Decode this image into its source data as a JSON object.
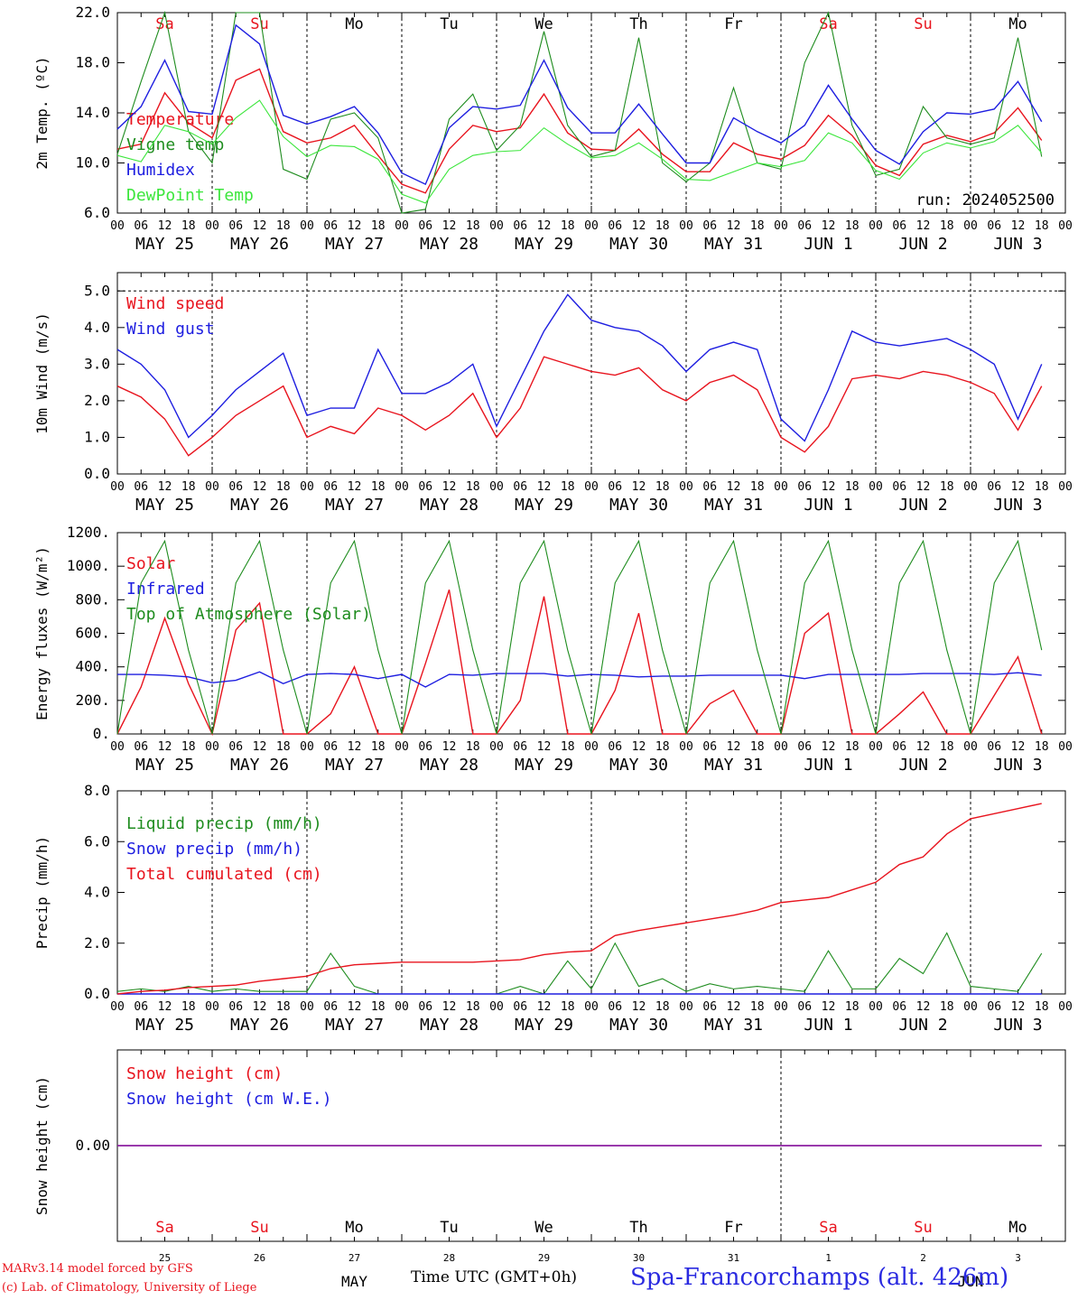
{
  "footer": {
    "credit_line_1": "MARv3.14 model forced by GFS",
    "credit_line_2": "(c) Lab. of Climatology, University of Liege",
    "time_axis_label": "Time UTC (GMT+0h)",
    "station": "Spa-Francorchamps (alt. 426m)"
  },
  "time_axis": {
    "hour_ticks": [
      "00",
      "06",
      "12",
      "18"
    ],
    "date_labels": [
      "MAY 25",
      "MAY 26",
      "MAY 27",
      "MAY 28",
      "MAY 29",
      "MAY 30",
      "MAY 31",
      "JUN  1",
      "JUN  2",
      "JUN  3"
    ],
    "weekday_labels": [
      "Sa",
      "Su",
      "Mo",
      "Tu",
      "We",
      "Th",
      "Fr",
      "Sa",
      "Su",
      "Mo"
    ],
    "weekend_flags": [
      true,
      true,
      false,
      false,
      false,
      false,
      false,
      true,
      true,
      false
    ],
    "day_numbers": [
      "25",
      "26",
      "27",
      "28",
      "29",
      "30",
      "31",
      "1",
      "2",
      "3"
    ],
    "month_labels": [
      "MAY",
      "JUN"
    ]
  },
  "colors": {
    "red": "#e8141e",
    "green": "#1e8c1e",
    "blue": "#1e1ee0",
    "lightgreen": "#3ce63c",
    "purple": "#8c1ea0"
  },
  "chart_data": [
    {
      "type": "line",
      "ylabel": "2m Temp. (ºC)",
      "ylim": [
        6.0,
        22.0
      ],
      "ytick_labels": [
        "6.0",
        "10.0",
        "14.0",
        "18.0",
        "22.0"
      ],
      "run_label": "run: 2024052500",
      "x_hours": [
        0,
        6,
        12,
        18,
        24,
        30,
        36,
        42,
        48,
        54,
        60,
        66,
        72,
        78,
        84,
        90,
        96,
        102,
        108,
        114,
        120,
        126,
        132,
        138,
        144,
        150,
        156,
        162,
        168,
        174,
        180,
        186,
        192,
        198,
        204,
        210,
        216,
        222,
        228,
        234
      ],
      "series": [
        {
          "name": "Temperature",
          "color": "red",
          "values": [
            11.1,
            11.5,
            15.6,
            13.2,
            12.0,
            16.6,
            17.5,
            12.5,
            11.6,
            12.0,
            13.0,
            10.6,
            8.3,
            7.6,
            11.1,
            13.0,
            12.5,
            12.8,
            15.5,
            12.4,
            11.1,
            11.0,
            12.7,
            10.7,
            9.3,
            9.3,
            11.6,
            10.7,
            10.3,
            11.4,
            13.8,
            12.2,
            9.8,
            9.0,
            11.5,
            12.2,
            11.7,
            12.4,
            14.4,
            11.8
          ]
        },
        {
          "name": "Vigne temp",
          "color": "green",
          "values": [
            10.7,
            16.5,
            22.0,
            12.5,
            10.0,
            22.0,
            22.0,
            9.5,
            8.7,
            13.5,
            14.0,
            12.0,
            6.0,
            6.3,
            13.5,
            15.5,
            11.0,
            13.0,
            20.5,
            13.0,
            10.5,
            11.0,
            20.0,
            10.0,
            8.5,
            10.0,
            16.0,
            10.0,
            9.5,
            18.0,
            22.0,
            13.0,
            9.0,
            9.5,
            14.5,
            12.0,
            11.5,
            12.0,
            20.0,
            10.5
          ]
        },
        {
          "name": "Humidex",
          "color": "blue",
          "values": [
            12.7,
            14.5,
            18.2,
            14.1,
            13.9,
            21.0,
            19.5,
            13.8,
            13.1,
            13.7,
            14.5,
            12.4,
            9.2,
            8.3,
            12.8,
            14.5,
            14.3,
            14.6,
            18.2,
            14.4,
            12.4,
            12.4,
            14.7,
            12.3,
            10.0,
            10.0,
            13.6,
            12.5,
            11.6,
            13.0,
            16.2,
            13.5,
            11.0,
            9.9,
            12.5,
            14.0,
            13.9,
            14.3,
            16.5,
            13.3
          ]
        },
        {
          "name": "DewPoint Temp",
          "color": "lightgreen",
          "values": [
            10.6,
            10.1,
            13.0,
            12.5,
            11.5,
            13.6,
            15.0,
            12.1,
            10.5,
            11.4,
            11.3,
            10.3,
            7.5,
            6.8,
            9.5,
            10.6,
            10.9,
            11.0,
            12.8,
            11.5,
            10.4,
            10.6,
            11.6,
            10.3,
            8.7,
            8.6,
            9.3,
            10.0,
            9.7,
            10.2,
            12.4,
            11.6,
            9.4,
            8.7,
            10.8,
            11.6,
            11.2,
            11.7,
            13.0,
            10.8
          ]
        }
      ]
    },
    {
      "type": "line",
      "ylabel": "10m Wind (m/s)",
      "ylim": [
        0.0,
        5.5
      ],
      "ytick_labels": [
        "0.0",
        "1.0",
        "2.0",
        "3.0",
        "4.0",
        "5.0"
      ],
      "x_hours": [
        0,
        6,
        12,
        18,
        24,
        30,
        36,
        42,
        48,
        54,
        60,
        66,
        72,
        78,
        84,
        90,
        96,
        102,
        108,
        114,
        120,
        126,
        132,
        138,
        144,
        150,
        156,
        162,
        168,
        174,
        180,
        186,
        192,
        198,
        204,
        210,
        216,
        222,
        228,
        234
      ],
      "series": [
        {
          "name": "Wind speed",
          "color": "red",
          "values": [
            2.4,
            2.1,
            1.5,
            0.5,
            1.0,
            1.6,
            2.0,
            2.4,
            1.0,
            1.3,
            1.1,
            1.8,
            1.6,
            1.2,
            1.6,
            2.2,
            1.0,
            1.8,
            3.2,
            3.0,
            2.8,
            2.7,
            2.9,
            2.3,
            2.0,
            2.5,
            2.7,
            2.3,
            1.0,
            0.6,
            1.3,
            2.6,
            2.7,
            2.6,
            2.8,
            2.7,
            2.5,
            2.2,
            1.2,
            2.4
          ]
        },
        {
          "name": "Wind gust",
          "color": "blue",
          "values": [
            3.4,
            3.0,
            2.3,
            1.0,
            1.6,
            2.3,
            2.8,
            3.3,
            1.6,
            1.8,
            1.8,
            3.4,
            2.2,
            2.2,
            2.5,
            3.0,
            1.3,
            2.6,
            3.9,
            4.9,
            4.2,
            4.0,
            3.9,
            3.5,
            2.8,
            3.4,
            3.6,
            3.4,
            1.5,
            0.9,
            2.3,
            3.9,
            3.6,
            3.5,
            3.6,
            3.7,
            3.4,
            3.0,
            1.5,
            3.0
          ]
        }
      ]
    },
    {
      "type": "line",
      "ylabel": "Energy fluxes (W/m²)",
      "ylim": [
        0,
        1200
      ],
      "ytick_labels": [
        "0.",
        "200.",
        "400.",
        "600.",
        "800.",
        "1000.",
        "1200."
      ],
      "x_hours": [
        0,
        6,
        12,
        18,
        24,
        30,
        36,
        42,
        48,
        54,
        60,
        66,
        72,
        78,
        84,
        90,
        96,
        102,
        108,
        114,
        120,
        126,
        132,
        138,
        144,
        150,
        156,
        162,
        168,
        174,
        180,
        186,
        192,
        198,
        204,
        210,
        216,
        222,
        228,
        234
      ],
      "series": [
        {
          "name": "Solar",
          "color": "red",
          "values": [
            0,
            280,
            690,
            300,
            0,
            620,
            780,
            0,
            0,
            120,
            400,
            0,
            0,
            420,
            860,
            0,
            0,
            200,
            820,
            0,
            0,
            260,
            720,
            0,
            0,
            180,
            260,
            0,
            0,
            600,
            720,
            0,
            0,
            120,
            250,
            0,
            0,
            230,
            460,
            0
          ]
        },
        {
          "name": "Infrared",
          "color": "blue",
          "values": [
            355,
            355,
            350,
            340,
            305,
            320,
            370,
            300,
            355,
            360,
            355,
            330,
            355,
            280,
            355,
            350,
            360,
            360,
            360,
            345,
            355,
            350,
            340,
            345,
            345,
            350,
            350,
            350,
            350,
            330,
            355,
            355,
            355,
            355,
            360,
            360,
            360,
            355,
            365,
            350
          ]
        },
        {
          "name": "Top of Atmosphere (Solar)",
          "color": "green",
          "values": [
            0,
            900,
            1150,
            500,
            0,
            900,
            1150,
            500,
            0,
            900,
            1150,
            500,
            0,
            900,
            1150,
            500,
            0,
            900,
            1150,
            500,
            0,
            900,
            1150,
            500,
            0,
            900,
            1150,
            500,
            0,
            900,
            1150,
            500,
            0,
            900,
            1150,
            500,
            0,
            900,
            1150,
            500
          ]
        }
      ]
    },
    {
      "type": "line",
      "ylabel": "Precip (mm/h)",
      "ylim": [
        0.0,
        8.0
      ],
      "ytick_labels": [
        "0.0",
        "2.0",
        "4.0",
        "6.0",
        "8.0"
      ],
      "x_hours": [
        0,
        6,
        12,
        18,
        24,
        30,
        36,
        42,
        48,
        54,
        60,
        66,
        72,
        78,
        84,
        90,
        96,
        102,
        108,
        114,
        120,
        126,
        132,
        138,
        144,
        150,
        156,
        162,
        168,
        174,
        180,
        186,
        192,
        198,
        204,
        210,
        216,
        222,
        228,
        234
      ],
      "series": [
        {
          "name": "Liquid precip (mm/h)",
          "color": "green",
          "values": [
            0.1,
            0.2,
            0.1,
            0.3,
            0.1,
            0.2,
            0.1,
            0.1,
            0.1,
            1.6,
            0.3,
            0.0,
            0.0,
            0.0,
            0.0,
            0.0,
            0.0,
            0.3,
            0.0,
            1.3,
            0.2,
            2.0,
            0.3,
            0.6,
            0.1,
            0.4,
            0.2,
            0.3,
            0.2,
            0.1,
            1.7,
            0.2,
            0.2,
            1.4,
            0.8,
            2.4,
            0.3,
            0.2,
            0.1,
            1.6
          ]
        },
        {
          "name": "Snow precip (mm/h)",
          "color": "blue",
          "values": [
            0,
            0,
            0,
            0,
            0,
            0,
            0,
            0,
            0,
            0,
            0,
            0,
            0,
            0,
            0,
            0,
            0,
            0,
            0,
            0,
            0,
            0,
            0,
            0,
            0,
            0,
            0,
            0,
            0,
            0,
            0,
            0,
            0,
            0,
            0,
            0,
            0,
            0,
            0,
            0
          ]
        },
        {
          "name": "Total cumulated (cm)",
          "color": "red",
          "values": [
            0.0,
            0.1,
            0.15,
            0.25,
            0.3,
            0.35,
            0.5,
            0.6,
            0.7,
            1.0,
            1.15,
            1.2,
            1.25,
            1.25,
            1.25,
            1.25,
            1.3,
            1.35,
            1.55,
            1.65,
            1.7,
            2.3,
            2.5,
            2.65,
            2.8,
            2.95,
            3.1,
            3.3,
            3.6,
            3.7,
            3.8,
            4.1,
            4.4,
            5.1,
            5.4,
            6.3,
            6.9,
            7.1,
            7.3,
            7.5
          ]
        }
      ]
    },
    {
      "type": "line",
      "ylabel": "Snow height (cm)",
      "ylim": [
        -1.0,
        1.0
      ],
      "ytick_labels": [
        "0.00"
      ],
      "x_hours": [
        0,
        234
      ],
      "series": [
        {
          "name": "Snow height (cm)",
          "color": "red",
          "values": [
            0,
            0
          ]
        },
        {
          "name": "Snow height (cm W.E.)",
          "color": "blue",
          "values": [
            0,
            0
          ]
        }
      ]
    }
  ]
}
